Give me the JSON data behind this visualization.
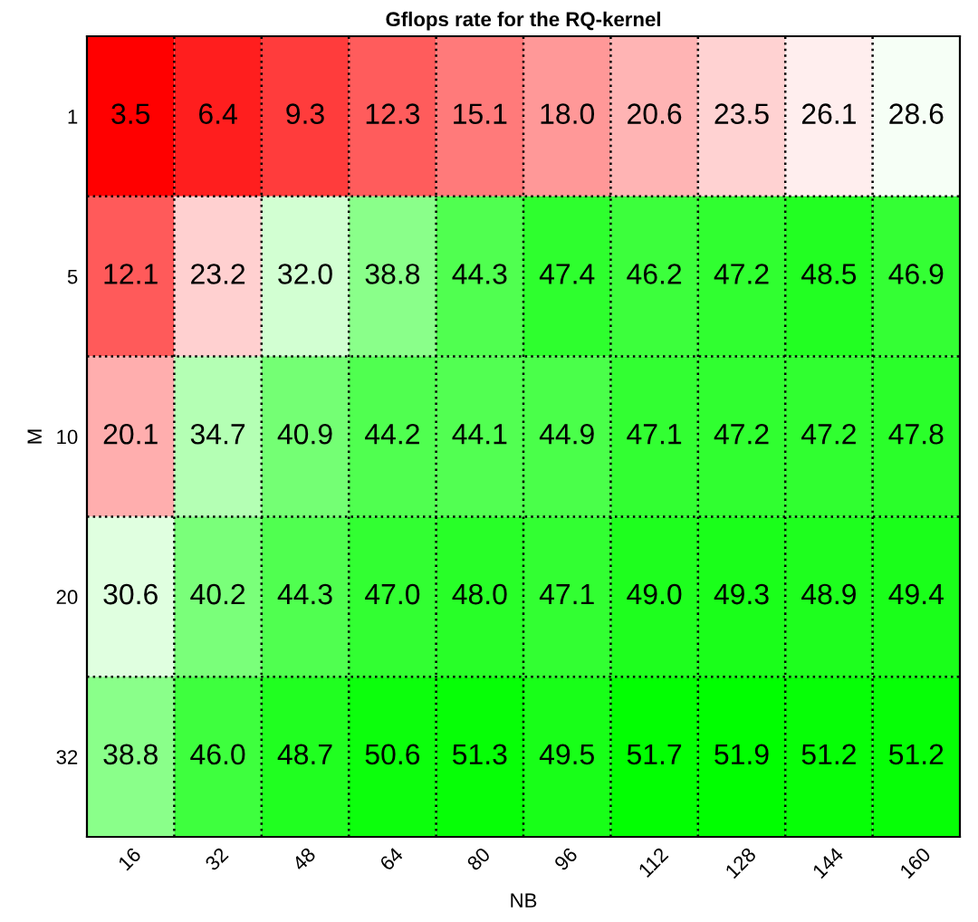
{
  "chart_data": {
    "type": "heatmap",
    "title": "Gflops rate for the RQ-kernel",
    "xlabel": "NB",
    "ylabel": "M",
    "categories": [
      "16",
      "32",
      "48",
      "64",
      "80",
      "96",
      "112",
      "128",
      "144",
      "160"
    ],
    "y_categories": [
      "1",
      "5",
      "10",
      "20",
      "32"
    ],
    "cells": [
      [
        3.5,
        6.4,
        9.3,
        12.3,
        15.1,
        18.0,
        20.6,
        23.5,
        26.1,
        28.6
      ],
      [
        12.1,
        23.2,
        32.0,
        38.8,
        44.3,
        47.4,
        46.2,
        47.2,
        48.5,
        46.9
      ],
      [
        20.1,
        34.7,
        40.9,
        44.2,
        44.1,
        44.9,
        47.1,
        47.2,
        47.2,
        47.8
      ],
      [
        30.6,
        40.2,
        44.3,
        47.0,
        48.0,
        47.1,
        49.0,
        49.3,
        48.9,
        49.4
      ],
      [
        38.8,
        46.0,
        48.7,
        50.6,
        51.3,
        49.5,
        51.7,
        51.9,
        51.2,
        51.2
      ]
    ],
    "cell_labels": [
      [
        "3.5",
        "6.4",
        "9.3",
        "12.3",
        "15.1",
        "18.0",
        "20.6",
        "23.5",
        "26.1",
        "28.6"
      ],
      [
        "12.1",
        "23.2",
        "32.0",
        "38.8",
        "44.3",
        "47.4",
        "46.2",
        "47.2",
        "48.5",
        "46.9"
      ],
      [
        "20.1",
        "34.7",
        "40.9",
        "44.2",
        "44.1",
        "44.9",
        "47.1",
        "47.2",
        "47.2",
        "47.8"
      ],
      [
        "30.6",
        "40.2",
        "44.3",
        "47.0",
        "48.0",
        "47.1",
        "49.0",
        "49.3",
        "48.9",
        "49.4"
      ],
      [
        "38.8",
        "46.0",
        "48.7",
        "50.6",
        "51.3",
        "49.5",
        "51.7",
        "51.9",
        "51.2",
        "51.2"
      ]
    ],
    "grid": true
  }
}
